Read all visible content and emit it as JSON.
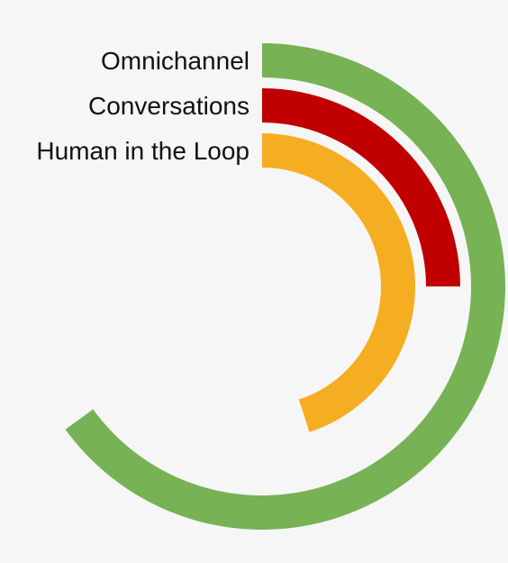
{
  "chart_data": {
    "type": "radial-bar",
    "max": 100,
    "series": [
      {
        "name": "Omnichannel",
        "value": 65,
        "color": "#77b255"
      },
      {
        "name": "Conversations",
        "value": 25,
        "color": "#c00000"
      },
      {
        "name": "Human in the Loop",
        "value": 45,
        "color": "#f5ae21"
      }
    ]
  }
}
